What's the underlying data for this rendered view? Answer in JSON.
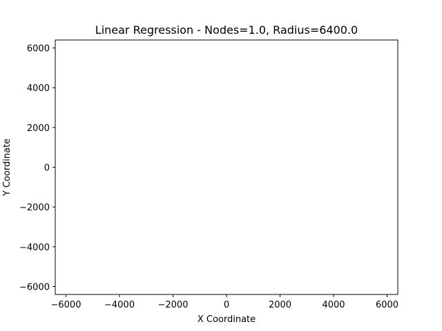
{
  "chart_data": {
    "type": "line",
    "title": "Linear Regression - Nodes=1.0, Radius=6400.0",
    "xlabel": "X Coordinate",
    "ylabel": "Y Coordinate",
    "xlim": [
      -6400,
      6400
    ],
    "ylim": [
      -6400,
      6400
    ],
    "xticks": [
      -6000,
      -4000,
      -2000,
      0,
      2000,
      4000,
      6000
    ],
    "yticks": [
      -6000,
      -4000,
      -2000,
      0,
      2000,
      4000,
      6000
    ],
    "grid": false,
    "series": []
  }
}
